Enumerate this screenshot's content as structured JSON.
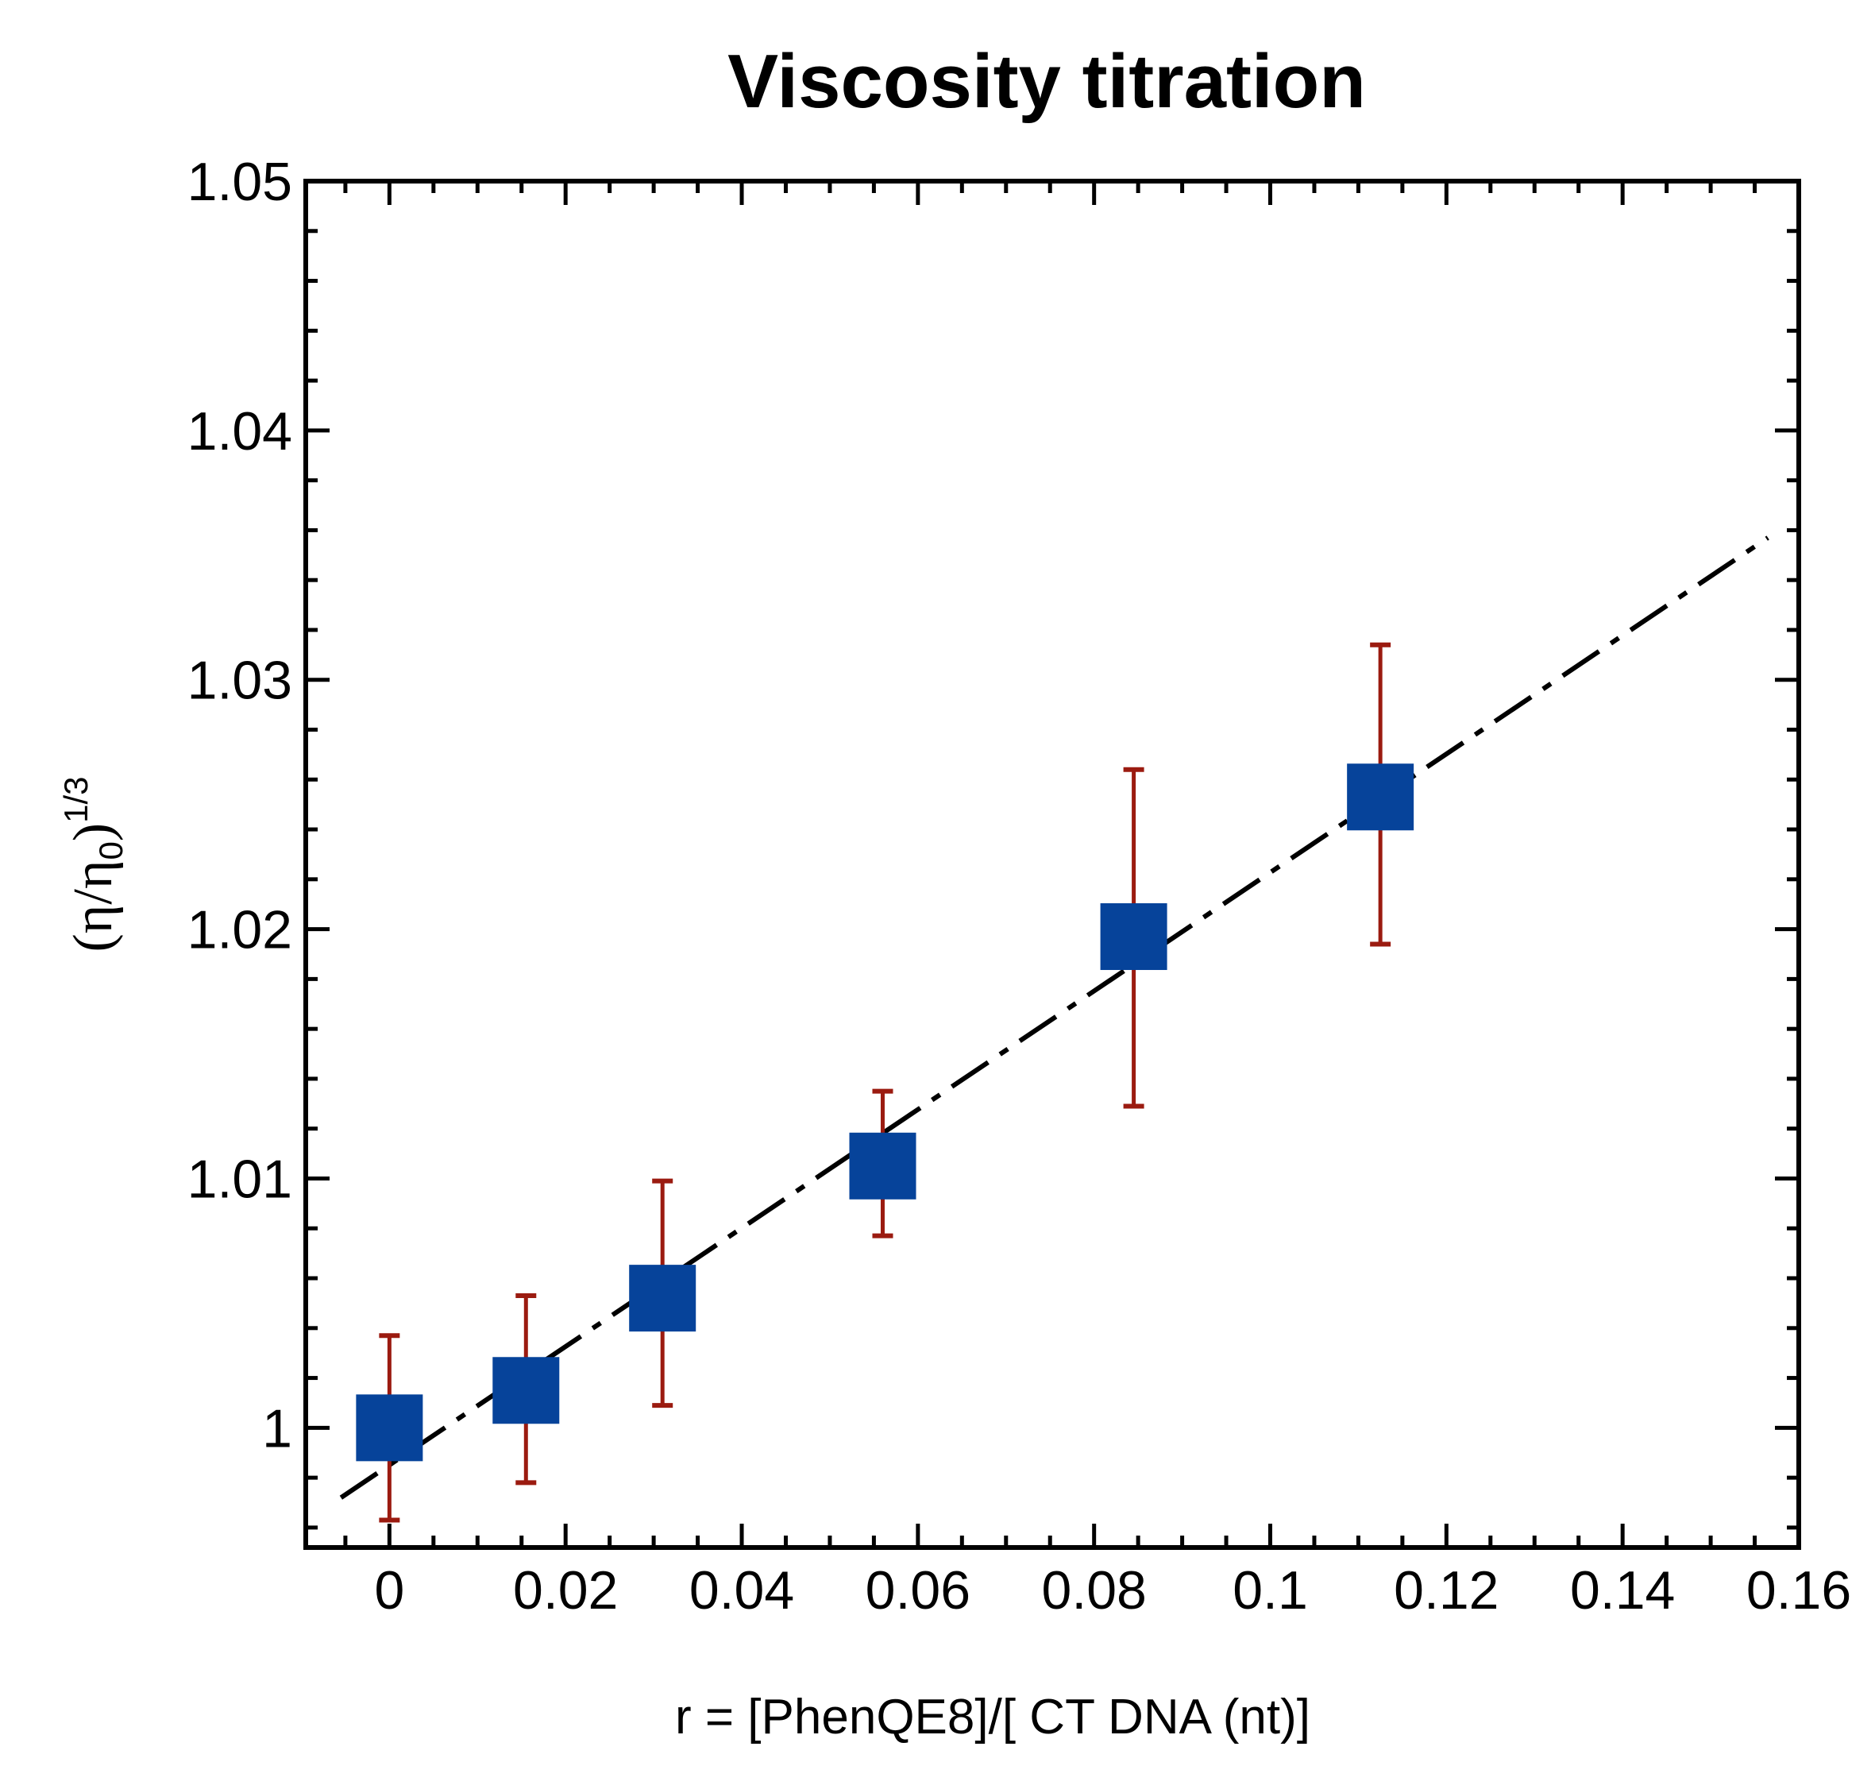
{
  "chart_data": {
    "type": "scatter",
    "title": "Viscosity titration",
    "xlabel": "r = [PhenQE8]/[ CT DNA (nt)]",
    "ylabel": {
      "open": "(",
      "eta": "η",
      "slash": "/",
      "eta0": "η",
      "sub": "0",
      "close": ")",
      "sup": "1/3"
    },
    "xlim": [
      -0.0095,
      0.16
    ],
    "ylim": [
      0.9952,
      1.05
    ],
    "xticks": [
      0,
      0.02,
      0.04,
      0.06,
      0.08,
      0.1,
      0.12,
      0.14,
      0.16
    ],
    "xtick_labels": [
      "0",
      "0.02",
      "0.04",
      "0.06",
      "0.08",
      "0.1",
      "0.12",
      "0.14",
      "0.16"
    ],
    "yticks": [
      1.0,
      1.01,
      1.02,
      1.03,
      1.04,
      1.05
    ],
    "ytick_labels": [
      "1",
      "1.01",
      "1.02",
      "1.03",
      "1.04",
      "1.05"
    ],
    "series": [
      {
        "name": "data",
        "marker": "square",
        "color": "#06439a",
        "errorbar_color": "#9b1b10",
        "x": [
          0.0,
          0.0155,
          0.031,
          0.056,
          0.0845,
          0.1125
        ],
        "y": [
          1.0,
          1.0015,
          1.0052,
          1.0105,
          1.0197,
          1.0253
        ],
        "yerr_low": [
          0.9963,
          0.9978,
          1.0009,
          1.0077,
          1.0129,
          1.0194
        ],
        "yerr_high": [
          1.0037,
          1.0053,
          1.0099,
          1.0135,
          1.0264,
          1.0314
        ]
      },
      {
        "name": "linear fit",
        "line_style": "dash-dot",
        "color": "#000000",
        "x": [
          -0.0055,
          0.1565
        ],
        "y": [
          0.9972,
          1.0357
        ]
      }
    ]
  }
}
